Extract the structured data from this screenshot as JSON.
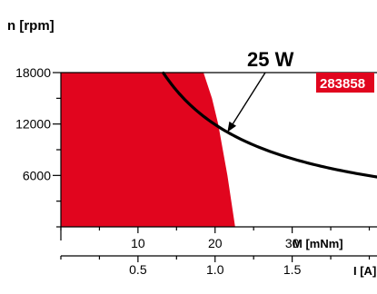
{
  "chart_data": {
    "type": "area",
    "y_axis_title": "n [rpm]",
    "torque_axis_title": "M [mNm]",
    "current_axis_title": "I [A]",
    "y_ticks": [
      6000,
      12000,
      18000
    ],
    "torque_ticks": [
      10,
      20,
      30
    ],
    "current_ticks": [
      0.5,
      1.0,
      1.5
    ],
    "ylim": [
      0,
      18000
    ],
    "torque_xlim": [
      0,
      41
    ],
    "current_xlim": [
      0,
      2.05
    ],
    "series": [
      {
        "name": "283858",
        "kind": "operating-range",
        "boundary_torque_at_n": [
          {
            "n": 18000,
            "M": 18.5
          },
          {
            "n": 15000,
            "M": 19.6
          },
          {
            "n": 12000,
            "M": 20.4
          },
          {
            "n": 9000,
            "M": 21.0
          },
          {
            "n": 6000,
            "M": 21.6
          },
          {
            "n": 3000,
            "M": 22.1
          },
          {
            "n": 0,
            "M": 22.6
          }
        ]
      },
      {
        "name": "25 W",
        "kind": "power-limit",
        "power_W": 25,
        "M_range": [
          13.3,
          41
        ]
      }
    ],
    "annotation": "25 W",
    "tag": "283858"
  },
  "colors": {
    "red": "#e1051e",
    "text": "#000000",
    "tag_text": "#ffffff"
  }
}
